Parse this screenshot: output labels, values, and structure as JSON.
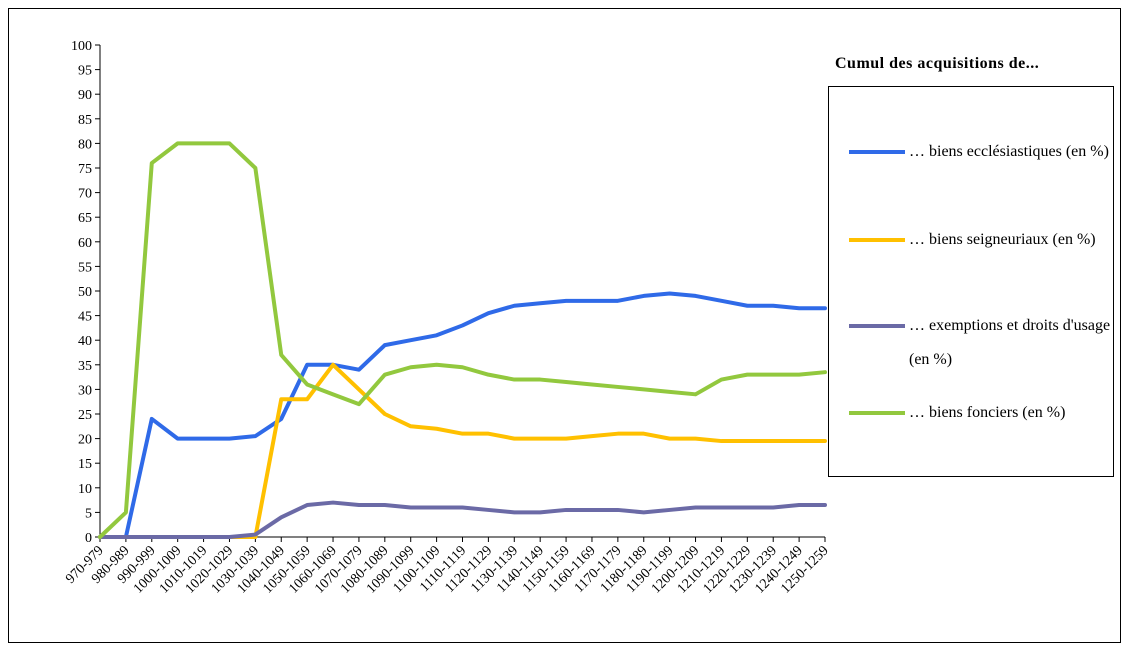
{
  "chart_data": {
    "type": "line",
    "legend_title": "Cumul des acquisitions de...",
    "categories": [
      "970-979",
      "980-989",
      "990-999",
      "1000-1009",
      "1010-1019",
      "1020-1029",
      "1030-1039",
      "1040-1049",
      "1050-1059",
      "1060-1069",
      "1070-1079",
      "1080-1089",
      "1090-1099",
      "1100-1109",
      "1110-1119",
      "1120-1129",
      "1130-1139",
      "1140-1149",
      "1150-1159",
      "1160-1169",
      "1170-1179",
      "1180-1189",
      "1190-1199",
      "1200-1209",
      "1210-1219",
      "1220-1229",
      "1230-1239",
      "1240-1249",
      "1250-1259"
    ],
    "series": [
      {
        "name": "… biens ecclésiastiques (en %)",
        "color": "#2f6ae8",
        "values": [
          0,
          0,
          24,
          20,
          20,
          20,
          20.5,
          24,
          35,
          35,
          34,
          39,
          40,
          41,
          43,
          45.5,
          47,
          47.5,
          48,
          48,
          48,
          49,
          49.5,
          49,
          48,
          47,
          47,
          46.5,
          46.5
        ]
      },
      {
        "name": "… biens seigneuriaux (en %)",
        "color": "#ffc000",
        "values": [
          0,
          0,
          0,
          0,
          0,
          0,
          0,
          28,
          28,
          35,
          30,
          25,
          22.5,
          22,
          21,
          21,
          20,
          20,
          20,
          20.5,
          21,
          21,
          20,
          20,
          19.5,
          19.5,
          19.5,
          19.5,
          19.5
        ]
      },
      {
        "name": "… exemptions et droits d'usage (en %)",
        "color": "#6b6aa6",
        "values": [
          0,
          0,
          0,
          0,
          0,
          0,
          0.5,
          4,
          6.5,
          7,
          6.5,
          6.5,
          6,
          6,
          6,
          5.5,
          5,
          5,
          5.5,
          5.5,
          5.5,
          5,
          5.5,
          6,
          6,
          6,
          6,
          6.5,
          6.5
        ]
      },
      {
        "name": "… biens fonciers (en %)",
        "color": "#92c83e",
        "values": [
          0,
          5,
          76,
          80,
          80,
          80,
          75,
          37,
          31,
          29,
          27,
          33,
          34.5,
          35,
          34.5,
          33,
          32,
          32,
          31.5,
          31,
          30.5,
          30,
          29.5,
          29,
          32,
          33,
          33,
          33,
          33.5
        ]
      }
    ],
    "ylim": [
      0,
      100
    ],
    "yticks": [
      0,
      5,
      10,
      15,
      20,
      25,
      30,
      35,
      40,
      45,
      50,
      55,
      60,
      65,
      70,
      75,
      80,
      85,
      90,
      95,
      100
    ]
  }
}
